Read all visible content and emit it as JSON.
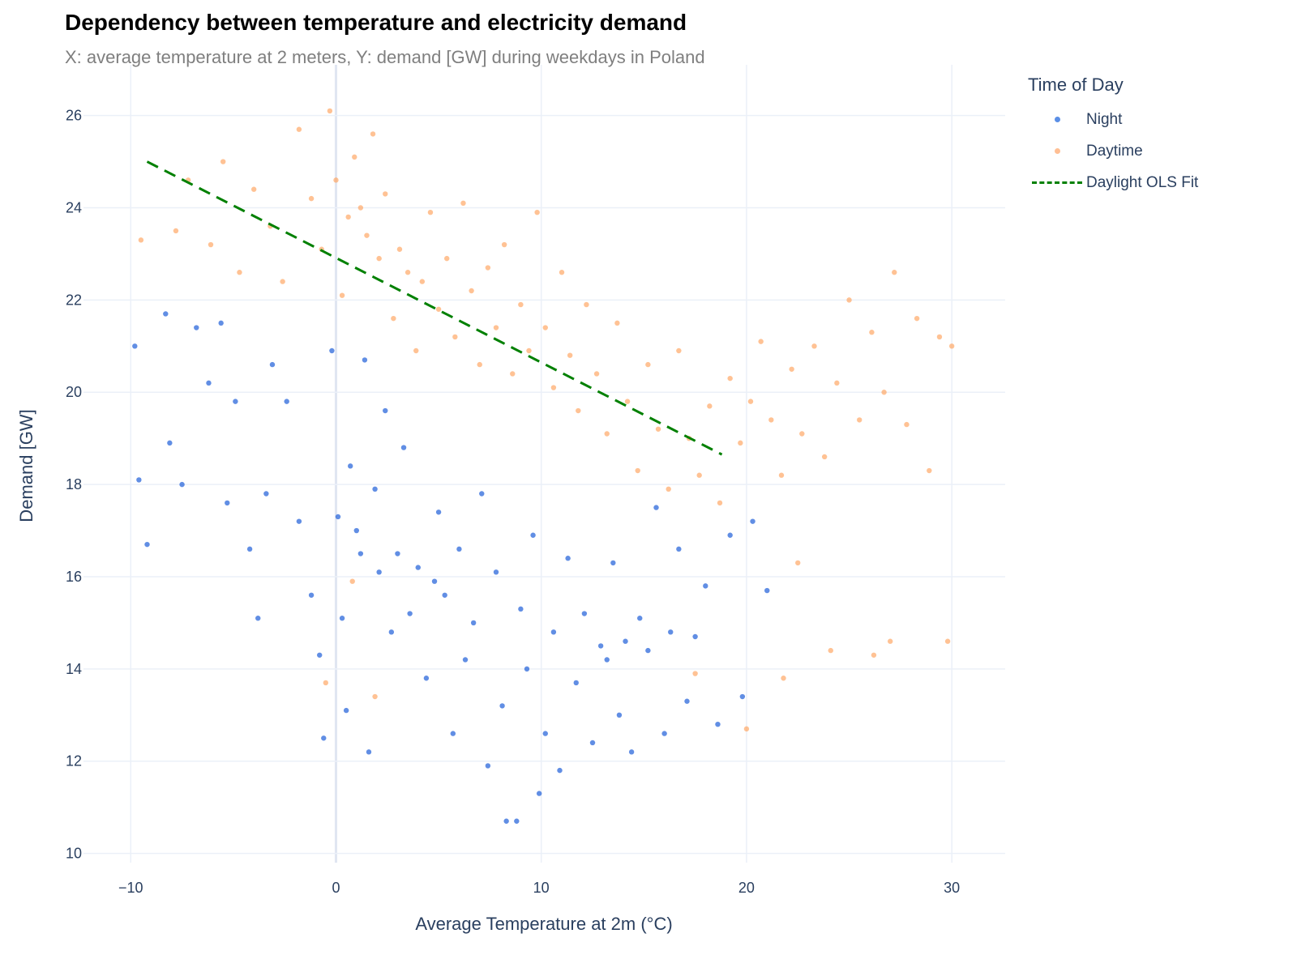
{
  "chart_data": {
    "type": "scatter",
    "title": "Dependency between temperature and electricity demand",
    "subtitle": "X: average temperature at 2 meters, Y: demand [GW] during weekdays in Poland",
    "xlabel": "Average Temperature at 2m (°C)",
    "ylabel": "Demand [GW]",
    "xlim": [
      -12.3,
      32.6
    ],
    "ylim": [
      9.8,
      27.1
    ],
    "xticks": [
      -10,
      0,
      10,
      20,
      30
    ],
    "xtick_labels": [
      "−10",
      "0",
      "10",
      "20",
      "30"
    ],
    "yticks": [
      10,
      12,
      14,
      16,
      18,
      20,
      22,
      24,
      26
    ],
    "grid": true,
    "legend": {
      "title": "Time of Day",
      "placement": "right"
    },
    "series": [
      {
        "name": "Night",
        "type": "scatter",
        "color": "#0d52d6",
        "points": [
          [
            -9.8,
            21.0
          ],
          [
            -9.6,
            18.1
          ],
          [
            -9.2,
            16.7
          ],
          [
            -8.3,
            21.7
          ],
          [
            -8.1,
            18.9
          ],
          [
            -7.5,
            18.0
          ],
          [
            -6.8,
            21.4
          ],
          [
            -6.2,
            20.2
          ],
          [
            -5.6,
            21.5
          ],
          [
            -5.3,
            17.6
          ],
          [
            -4.9,
            19.8
          ],
          [
            -4.2,
            16.6
          ],
          [
            -3.8,
            15.1
          ],
          [
            -3.4,
            17.8
          ],
          [
            -3.1,
            20.6
          ],
          [
            -2.4,
            19.8
          ],
          [
            -1.8,
            17.2
          ],
          [
            -1.2,
            15.6
          ],
          [
            -0.8,
            14.3
          ],
          [
            -0.6,
            12.5
          ],
          [
            -0.2,
            20.9
          ],
          [
            0.1,
            17.3
          ],
          [
            0.3,
            15.1
          ],
          [
            0.5,
            13.1
          ],
          [
            0.7,
            18.4
          ],
          [
            1.0,
            17.0
          ],
          [
            1.2,
            16.5
          ],
          [
            1.4,
            20.7
          ],
          [
            1.6,
            12.2
          ],
          [
            1.9,
            17.9
          ],
          [
            2.1,
            16.1
          ],
          [
            2.4,
            19.6
          ],
          [
            2.7,
            14.8
          ],
          [
            3.0,
            16.5
          ],
          [
            3.3,
            18.8
          ],
          [
            3.6,
            15.2
          ],
          [
            4.0,
            16.2
          ],
          [
            4.4,
            13.8
          ],
          [
            4.8,
            15.9
          ],
          [
            5.0,
            17.4
          ],
          [
            5.3,
            15.6
          ],
          [
            5.7,
            12.6
          ],
          [
            6.0,
            16.6
          ],
          [
            6.3,
            14.2
          ],
          [
            6.7,
            15.0
          ],
          [
            7.1,
            17.8
          ],
          [
            7.4,
            11.9
          ],
          [
            7.8,
            16.1
          ],
          [
            8.1,
            13.2
          ],
          [
            8.3,
            10.7
          ],
          [
            8.8,
            10.7
          ],
          [
            9.0,
            15.3
          ],
          [
            9.3,
            14.0
          ],
          [
            9.6,
            16.9
          ],
          [
            9.9,
            11.3
          ],
          [
            10.2,
            12.6
          ],
          [
            10.6,
            14.8
          ],
          [
            10.9,
            11.8
          ],
          [
            11.3,
            16.4
          ],
          [
            11.7,
            13.7
          ],
          [
            12.1,
            15.2
          ],
          [
            12.5,
            12.4
          ],
          [
            12.9,
            14.5
          ],
          [
            13.2,
            14.2
          ],
          [
            13.5,
            16.3
          ],
          [
            13.8,
            13.0
          ],
          [
            14.1,
            14.6
          ],
          [
            14.4,
            12.2
          ],
          [
            14.8,
            15.1
          ],
          [
            15.2,
            14.4
          ],
          [
            15.6,
            17.5
          ],
          [
            16.0,
            12.6
          ],
          [
            16.3,
            14.8
          ],
          [
            16.7,
            16.6
          ],
          [
            17.1,
            13.3
          ],
          [
            17.5,
            14.7
          ],
          [
            18.0,
            15.8
          ],
          [
            18.6,
            12.8
          ],
          [
            19.2,
            16.9
          ],
          [
            19.8,
            13.4
          ],
          [
            20.3,
            17.2
          ],
          [
            21.0,
            15.7
          ]
        ]
      },
      {
        "name": "Daytime",
        "type": "scatter",
        "color": "#ffa15a",
        "points": [
          [
            -9.5,
            23.3
          ],
          [
            -7.8,
            23.5
          ],
          [
            -7.2,
            24.6
          ],
          [
            -6.1,
            23.2
          ],
          [
            -5.5,
            25.0
          ],
          [
            -4.7,
            22.6
          ],
          [
            -4.0,
            24.4
          ],
          [
            -3.2,
            23.6
          ],
          [
            -2.6,
            22.4
          ],
          [
            -1.8,
            25.7
          ],
          [
            -1.2,
            24.2
          ],
          [
            -0.7,
            23.1
          ],
          [
            -0.3,
            26.1
          ],
          [
            0.0,
            24.6
          ],
          [
            0.3,
            22.1
          ],
          [
            0.6,
            23.8
          ],
          [
            0.9,
            25.1
          ],
          [
            1.2,
            24.0
          ],
          [
            1.5,
            23.4
          ],
          [
            1.8,
            25.6
          ],
          [
            2.1,
            22.9
          ],
          [
            2.4,
            24.3
          ],
          [
            2.8,
            21.6
          ],
          [
            3.1,
            23.1
          ],
          [
            3.5,
            22.6
          ],
          [
            3.9,
            20.9
          ],
          [
            4.2,
            22.4
          ],
          [
            4.6,
            23.9
          ],
          [
            5.0,
            21.8
          ],
          [
            5.4,
            22.9
          ],
          [
            5.8,
            21.2
          ],
          [
            6.2,
            24.1
          ],
          [
            6.6,
            22.2
          ],
          [
            7.0,
            20.6
          ],
          [
            7.4,
            22.7
          ],
          [
            7.8,
            21.4
          ],
          [
            8.2,
            23.2
          ],
          [
            8.6,
            20.4
          ],
          [
            9.0,
            21.9
          ],
          [
            9.4,
            20.9
          ],
          [
            9.8,
            23.9
          ],
          [
            10.2,
            21.4
          ],
          [
            10.6,
            20.1
          ],
          [
            11.0,
            22.6
          ],
          [
            11.4,
            20.8
          ],
          [
            11.8,
            19.6
          ],
          [
            12.2,
            21.9
          ],
          [
            12.7,
            20.4
          ],
          [
            13.2,
            19.1
          ],
          [
            13.7,
            21.5
          ],
          [
            14.2,
            19.8
          ],
          [
            14.7,
            18.3
          ],
          [
            15.2,
            20.6
          ],
          [
            15.7,
            19.2
          ],
          [
            16.2,
            17.9
          ],
          [
            16.7,
            20.9
          ],
          [
            17.2,
            19.0
          ],
          [
            17.7,
            18.2
          ],
          [
            18.2,
            19.7
          ],
          [
            18.7,
            17.6
          ],
          [
            19.2,
            20.3
          ],
          [
            19.7,
            18.9
          ],
          [
            20.2,
            19.8
          ],
          [
            20.7,
            21.1
          ],
          [
            21.2,
            19.4
          ],
          [
            21.7,
            18.2
          ],
          [
            22.2,
            20.5
          ],
          [
            22.7,
            19.1
          ],
          [
            23.3,
            21.0
          ],
          [
            23.8,
            18.6
          ],
          [
            24.4,
            20.2
          ],
          [
            25.0,
            22.0
          ],
          [
            25.5,
            19.4
          ],
          [
            26.1,
            21.3
          ],
          [
            26.7,
            20.0
          ],
          [
            27.2,
            22.6
          ],
          [
            27.8,
            19.3
          ],
          [
            28.3,
            21.6
          ],
          [
            28.9,
            18.3
          ],
          [
            29.4,
            21.2
          ],
          [
            30.0,
            21.0
          ],
          [
            29.8,
            14.6
          ],
          [
            27.0,
            14.6
          ],
          [
            26.2,
            14.3
          ],
          [
            24.1,
            14.4
          ],
          [
            22.5,
            16.3
          ],
          [
            21.8,
            13.8
          ],
          [
            20.0,
            12.7
          ],
          [
            17.5,
            13.9
          ],
          [
            1.9,
            13.4
          ],
          [
            0.8,
            15.9
          ],
          [
            -0.5,
            13.7
          ]
        ]
      },
      {
        "name": "Daylight OLS Fit",
        "type": "line",
        "dash": "dash",
        "color": "#008000",
        "points": [
          [
            -9.2,
            25.0
          ],
          [
            18.8,
            18.65
          ]
        ]
      }
    ]
  }
}
